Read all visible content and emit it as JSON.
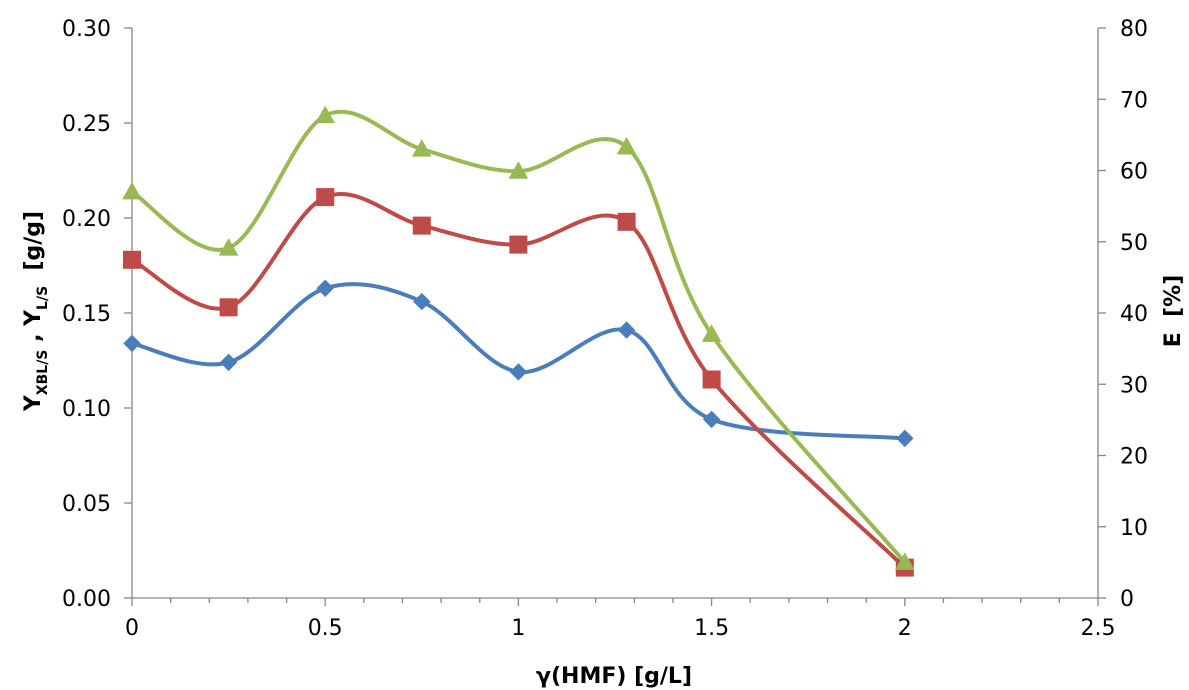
{
  "chart_data": {
    "type": "line",
    "smooth": true,
    "grid": false,
    "legend": "none",
    "xlabel": "γ(HMF) [g/L]",
    "ylabel_left": {
      "y1": "Y",
      "sub1": "XBL/S",
      "sep": " , ",
      "y2": "Y",
      "sub2": "L/S",
      "unit": "  [g/g]"
    },
    "ylabel_right": "E  [%]",
    "xlim": [
      0,
      2.5
    ],
    "ylim_left": [
      0,
      0.3
    ],
    "ylim_right": [
      0,
      80
    ],
    "x_ticks": [
      "0",
      "0.5",
      "1",
      "1.5",
      "2",
      "2.5"
    ],
    "y_left_ticks": [
      "0.00",
      "0.05",
      "0.10",
      "0.15",
      "0.20",
      "0.25",
      "0.30"
    ],
    "y_right_ticks": [
      "0",
      "10",
      "20",
      "30",
      "40",
      "50",
      "60",
      "70",
      "80"
    ],
    "series": [
      {
        "axis": "left",
        "color": "#4a7ebb",
        "marker": "diamond",
        "x": [
          0,
          0.25,
          0.5,
          0.75,
          1,
          1.28,
          1.5,
          2
        ],
        "y": [
          0.134,
          0.124,
          0.163,
          0.156,
          0.119,
          0.141,
          0.094,
          0.084
        ]
      },
      {
        "axis": "left",
        "color": "#be4b48",
        "marker": "square",
        "x": [
          0,
          0.25,
          0.5,
          0.75,
          1,
          1.28,
          1.5,
          2
        ],
        "y": [
          0.178,
          0.153,
          0.211,
          0.196,
          0.186,
          0.198,
          0.115,
          0.016
        ]
      },
      {
        "axis": "right",
        "color": "#98b954",
        "marker": "triangle",
        "x": [
          0,
          0.25,
          0.5,
          0.75,
          1,
          1.28,
          1.5,
          2
        ],
        "y": [
          57.0,
          49.1,
          67.7,
          63.0,
          59.9,
          63.3,
          37.0,
          5.0
        ]
      }
    ]
  }
}
